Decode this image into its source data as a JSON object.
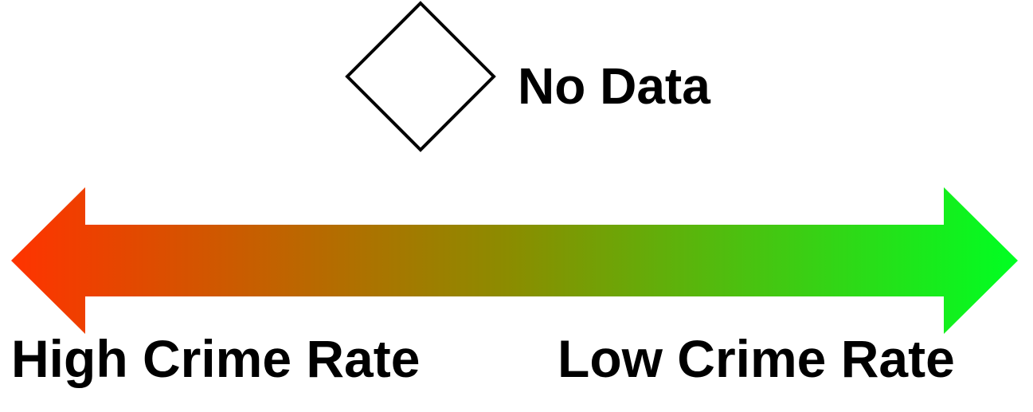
{
  "legend": {
    "no_data": {
      "label": "No Data",
      "symbol": "diamond-outline",
      "fill": "#ffffff",
      "stroke": "#000000"
    },
    "scale": {
      "low_end_label": "High Crime Rate",
      "high_end_label": "Low Crime Rate",
      "start_color": "#ff3300",
      "mid_color": "#8a8d00",
      "end_color": "#00ff22"
    }
  }
}
